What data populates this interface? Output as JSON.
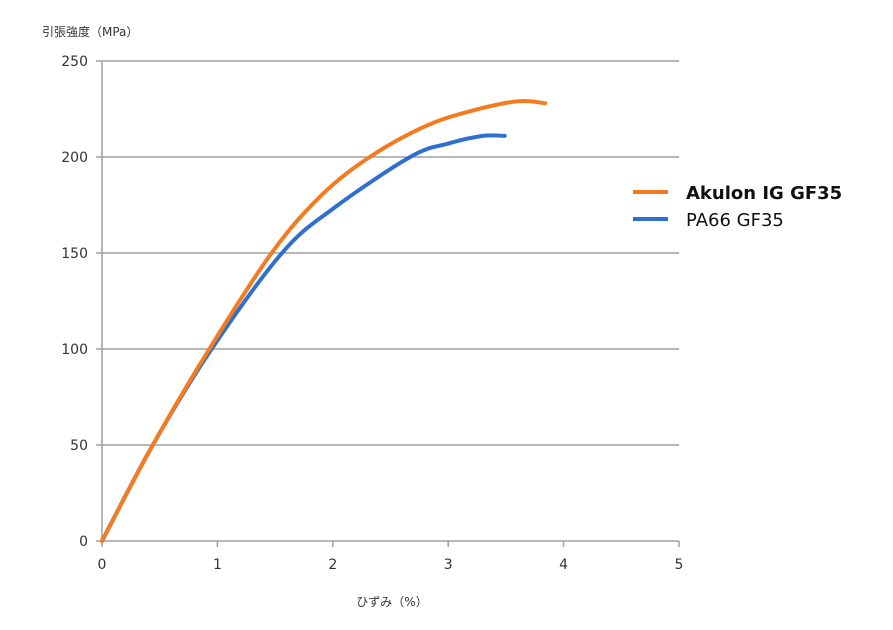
{
  "chart_data": {
    "type": "line",
    "title": "",
    "xlabel": "ひずみ（%）",
    "ylabel": "引張強度（MPa）",
    "xlim": [
      0,
      5
    ],
    "ylim": [
      0,
      250
    ],
    "xticks": [
      "0",
      "1",
      "2",
      "3",
      "4",
      "5"
    ],
    "yticks": [
      "0",
      "50",
      "100",
      "150",
      "200",
      "250"
    ],
    "grid": "horizontal",
    "legend_position": "right",
    "series": [
      {
        "name": "Akulon IG GF35",
        "color": "#f47b20",
        "bold": true,
        "x": [
          0,
          0.44,
          0.93,
          1.47,
          1.9,
          2.32,
          2.8,
          3.2,
          3.6,
          3.84
        ],
        "y": [
          0,
          50,
          100,
          150,
          180,
          200,
          216,
          224,
          229,
          228
        ]
      },
      {
        "name": "PA66 GF35",
        "color": "#2f6fd0",
        "bold": false,
        "x": [
          0,
          0.44,
          0.95,
          1.56,
          2.0,
          2.67,
          3.0,
          3.3,
          3.49
        ],
        "y": [
          0,
          50,
          100,
          150,
          173,
          200,
          207,
          211,
          211
        ]
      }
    ]
  }
}
